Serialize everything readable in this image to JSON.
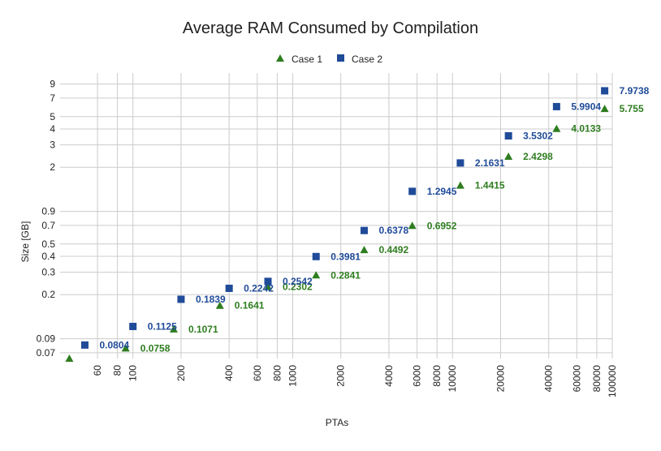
{
  "chart_data": {
    "type": "scatter",
    "title": "Average RAM Consumed by Compilation",
    "xlabel": "PTAs",
    "ylabel": "Size [GB]",
    "x_scale": "log",
    "y_scale": "log",
    "xlim": [
      35,
      100000
    ],
    "ylim": [
      0.063,
      11
    ],
    "x_ticks": [
      "60",
      "80",
      "100",
      "200",
      "400",
      "600",
      "800",
      "1000",
      "2000",
      "4000",
      "6000",
      "8000",
      "10000",
      "20000",
      "40000",
      "60000",
      "80000",
      "100000"
    ],
    "x_tick_values": [
      60,
      80,
      100,
      200,
      400,
      600,
      800,
      1000,
      2000,
      4000,
      6000,
      8000,
      10000,
      20000,
      40000,
      60000,
      80000,
      100000
    ],
    "y_ticks": [
      "0.07",
      "0.09",
      "0.2",
      "0.3",
      "0.4",
      "0.5",
      "0.7",
      "0.9",
      "2",
      "3",
      "4",
      "5",
      "7",
      "9"
    ],
    "y_tick_values": [
      0.07,
      0.09,
      0.2,
      0.3,
      0.4,
      0.5,
      0.7,
      0.9,
      2,
      3,
      4,
      5,
      7,
      9
    ],
    "grid": true,
    "legend_position": "top-center",
    "series": [
      {
        "name": "Case 1",
        "marker": "triangle",
        "color": "#2e7d1f",
        "x": [
          40,
          90,
          180,
          350,
          700,
          1400,
          2800,
          5600,
          11200,
          22400,
          44800,
          89600
        ],
        "y": [
          0.063,
          0.0758,
          0.1071,
          0.1641,
          0.2302,
          0.2841,
          0.4492,
          0.6952,
          1.4415,
          2.4298,
          4.0133,
          5.755
        ],
        "labels": [
          "",
          "0.0758",
          "0.1071",
          "0.1641",
          "0.2302",
          "0.2841",
          "0.4492",
          "0.6952",
          "1.4415",
          "2.4298",
          "4.0133",
          "5.755"
        ]
      },
      {
        "name": "Case 2",
        "marker": "square",
        "color": "#1f4b99",
        "x": [
          50,
          100,
          200,
          400,
          700,
          1400,
          2800,
          5600,
          11200,
          22400,
          44800,
          89600
        ],
        "y": [
          0.0804,
          0.1125,
          0.1839,
          0.2242,
          0.2542,
          0.3981,
          0.6378,
          1.2945,
          2.1631,
          3.5302,
          5.9904,
          7.9738
        ],
        "labels": [
          "0.0804",
          "0.1125",
          "0.1839",
          "0.2242",
          "0.2542",
          "0.3981",
          "0.6378",
          "1.2945",
          "2.1631",
          "3.5302",
          "5.9904",
          "7.9738"
        ]
      }
    ]
  }
}
